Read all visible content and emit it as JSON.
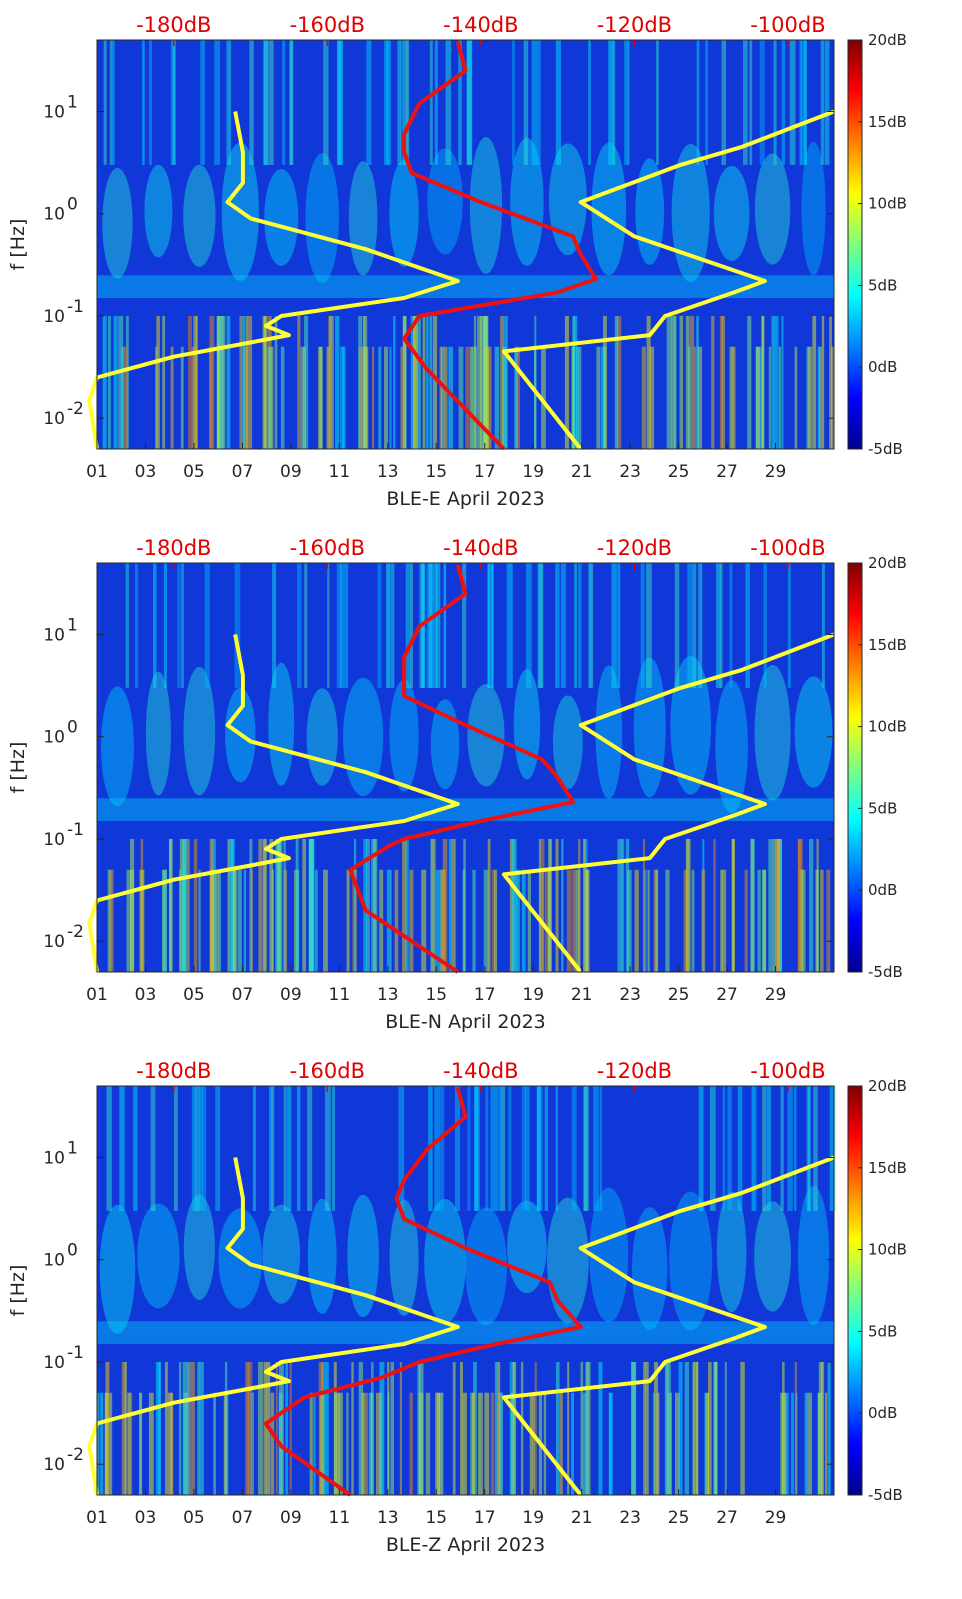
{
  "chart_data": [
    {
      "type": "heatmap",
      "station": "BLE-E",
      "xlabel": "BLE-E April 2023",
      "ylabel": "f [Hz]",
      "yscale": "log",
      "ylim": [
        0.005,
        50
      ],
      "xlim": [
        1,
        31
      ],
      "x_ticks": [
        "01",
        "03",
        "05",
        "07",
        "09",
        "11",
        "13",
        "15",
        "17",
        "19",
        "21",
        "23",
        "25",
        "27",
        "29"
      ],
      "y_ticks": [
        {
          "label": "10^-2",
          "value": 0.01
        },
        {
          "label": "10^-1",
          "value": 0.1
        },
        {
          "label": "10^0",
          "value": 1
        },
        {
          "label": "10^1",
          "value": 10
        }
      ],
      "colorbar": {
        "min": -5,
        "max": 20,
        "ticks": [
          "20dB",
          "15dB",
          "10dB",
          "5dB",
          "0dB",
          "-5dB"
        ],
        "colormap": "jet"
      },
      "top_scale": {
        "label_color": "#e00000",
        "labels": [
          "-180dB",
          "-160dB",
          "-140dB",
          "-120dB",
          "-100dB"
        ],
        "range": [
          -190,
          -94
        ]
      },
      "series": [
        {
          "color": "#ffff33",
          "points": [
            [
              -190,
              0.005
            ],
            [
              -191,
              0.015
            ],
            [
              -190,
              0.025
            ],
            [
              -180,
              0.04
            ],
            [
              -170,
              0.055
            ],
            [
              -165,
              0.065
            ],
            [
              -168,
              0.08
            ],
            [
              -166,
              0.1
            ],
            [
              -150,
              0.15
            ],
            [
              -143,
              0.22
            ],
            [
              -155,
              0.45
            ],
            [
              -170,
              0.9
            ],
            [
              -173,
              1.3
            ],
            [
              -171,
              2
            ],
            [
              -171,
              4
            ],
            [
              -172,
              10
            ]
          ]
        },
        {
          "color": "#ffff33",
          "points": [
            [
              -127,
              0.005
            ],
            [
              -137,
              0.045
            ],
            [
              -118,
              0.065
            ],
            [
              -116,
              0.1
            ],
            [
              -107,
              0.17
            ],
            [
              -103,
              0.22
            ],
            [
              -120,
              0.6
            ],
            [
              -127,
              1.3
            ],
            [
              -114,
              3
            ],
            [
              -106,
              4.5
            ],
            [
              -94,
              10
            ]
          ]
        },
        {
          "color": "#ee1111",
          "points": [
            [
              -137,
              0.005
            ],
            [
              -147,
              0.03
            ],
            [
              -150,
              0.06
            ],
            [
              -148,
              0.1
            ],
            [
              -130,
              0.17
            ],
            [
              -125,
              0.23
            ],
            [
              -127,
              0.4
            ],
            [
              -128,
              0.6
            ],
            [
              -140,
              1.3
            ],
            [
              -149,
              2.5
            ],
            [
              -150,
              4
            ],
            [
              -150,
              6
            ],
            [
              -148,
              12
            ],
            [
              -142,
              25
            ],
            [
              -143,
              48
            ]
          ]
        }
      ]
    },
    {
      "type": "heatmap",
      "station": "BLE-N",
      "xlabel": "BLE-N April 2023",
      "ylabel": "f [Hz]",
      "yscale": "log",
      "ylim": [
        0.005,
        50
      ],
      "xlim": [
        1,
        31
      ],
      "x_ticks": [
        "01",
        "03",
        "05",
        "07",
        "09",
        "11",
        "13",
        "15",
        "17",
        "19",
        "21",
        "23",
        "25",
        "27",
        "29"
      ],
      "y_ticks": [
        {
          "label": "10^-2",
          "value": 0.01
        },
        {
          "label": "10^-1",
          "value": 0.1
        },
        {
          "label": "10^0",
          "value": 1
        },
        {
          "label": "10^1",
          "value": 10
        }
      ],
      "colorbar": {
        "min": -5,
        "max": 20,
        "ticks": [
          "20dB",
          "15dB",
          "10dB",
          "5dB",
          "0dB",
          "-5dB"
        ],
        "colormap": "jet"
      },
      "top_scale": {
        "label_color": "#e00000",
        "labels": [
          "-180dB",
          "-160dB",
          "-140dB",
          "-120dB",
          "-100dB"
        ],
        "range": [
          -190,
          -94
        ]
      },
      "series": [
        {
          "color": "#ffff33",
          "points": [
            [
              -190,
              0.005
            ],
            [
              -191,
              0.015
            ],
            [
              -190,
              0.025
            ],
            [
              -180,
              0.04
            ],
            [
              -170,
              0.055
            ],
            [
              -165,
              0.065
            ],
            [
              -168,
              0.08
            ],
            [
              -166,
              0.1
            ],
            [
              -150,
              0.15
            ],
            [
              -143,
              0.22
            ],
            [
              -155,
              0.45
            ],
            [
              -170,
              0.9
            ],
            [
              -173,
              1.3
            ],
            [
              -171,
              2
            ],
            [
              -171,
              4
            ],
            [
              -172,
              10
            ]
          ]
        },
        {
          "color": "#ffff33",
          "points": [
            [
              -127,
              0.005
            ],
            [
              -137,
              0.045
            ],
            [
              -118,
              0.065
            ],
            [
              -116,
              0.1
            ],
            [
              -107,
              0.17
            ],
            [
              -103,
              0.22
            ],
            [
              -120,
              0.6
            ],
            [
              -127,
              1.3
            ],
            [
              -114,
              3
            ],
            [
              -106,
              4.5
            ],
            [
              -94,
              10
            ]
          ]
        },
        {
          "color": "#ee1111",
          "points": [
            [
              -143,
              0.005
            ],
            [
              -155,
              0.02
            ],
            [
              -157,
              0.05
            ],
            [
              -152,
              0.085
            ],
            [
              -150,
              0.1
            ],
            [
              -140,
              0.15
            ],
            [
              -128,
              0.23
            ],
            [
              -130,
              0.4
            ],
            [
              -132,
              0.6
            ],
            [
              -142,
              1.3
            ],
            [
              -150,
              2.5
            ],
            [
              -150,
              4
            ],
            [
              -150,
              6
            ],
            [
              -148,
              12
            ],
            [
              -142,
              25
            ],
            [
              -143,
              48
            ]
          ]
        }
      ]
    },
    {
      "type": "heatmap",
      "station": "BLE-Z",
      "xlabel": "BLE-Z April 2023",
      "ylabel": "f [Hz]",
      "yscale": "log",
      "ylim": [
        0.005,
        50
      ],
      "xlim": [
        1,
        31
      ],
      "x_ticks": [
        "01",
        "03",
        "05",
        "07",
        "09",
        "11",
        "13",
        "15",
        "17",
        "19",
        "21",
        "23",
        "25",
        "27",
        "29"
      ],
      "y_ticks": [
        {
          "label": "10^-2",
          "value": 0.01
        },
        {
          "label": "10^-1",
          "value": 0.1
        },
        {
          "label": "10^0",
          "value": 1
        },
        {
          "label": "10^1",
          "value": 10
        }
      ],
      "colorbar": {
        "min": -5,
        "max": 20,
        "ticks": [
          "20dB",
          "15dB",
          "10dB",
          "5dB",
          "0dB",
          "-5dB"
        ],
        "colormap": "jet"
      },
      "top_scale": {
        "label_color": "#e00000",
        "labels": [
          "-180dB",
          "-160dB",
          "-140dB",
          "-120dB",
          "-100dB"
        ],
        "range": [
          -190,
          -94
        ]
      },
      "series": [
        {
          "color": "#ffff33",
          "points": [
            [
              -190,
              0.005
            ],
            [
              -191,
              0.015
            ],
            [
              -190,
              0.025
            ],
            [
              -180,
              0.04
            ],
            [
              -170,
              0.055
            ],
            [
              -165,
              0.065
            ],
            [
              -168,
              0.08
            ],
            [
              -166,
              0.1
            ],
            [
              -150,
              0.15
            ],
            [
              -143,
              0.22
            ],
            [
              -155,
              0.45
            ],
            [
              -170,
              0.9
            ],
            [
              -173,
              1.3
            ],
            [
              -171,
              2
            ],
            [
              -171,
              4
            ],
            [
              -172,
              10
            ]
          ]
        },
        {
          "color": "#ffff33",
          "points": [
            [
              -127,
              0.005
            ],
            [
              -137,
              0.045
            ],
            [
              -118,
              0.065
            ],
            [
              -116,
              0.1
            ],
            [
              -107,
              0.17
            ],
            [
              -103,
              0.22
            ],
            [
              -120,
              0.6
            ],
            [
              -127,
              1.3
            ],
            [
              -114,
              3
            ],
            [
              -106,
              4.5
            ],
            [
              -94,
              10
            ]
          ]
        },
        {
          "color": "#ee1111",
          "points": [
            [
              -157,
              0.005
            ],
            [
              -166,
              0.015
            ],
            [
              -168,
              0.025
            ],
            [
              -163,
              0.045
            ],
            [
              -153,
              0.07
            ],
            [
              -148,
              0.1
            ],
            [
              -138,
              0.15
            ],
            [
              -127,
              0.22
            ],
            [
              -130,
              0.4
            ],
            [
              -131,
              0.6
            ],
            [
              -142,
              1.3
            ],
            [
              -150,
              2.5
            ],
            [
              -151,
              4
            ],
            [
              -150,
              6
            ],
            [
              -147,
              12
            ],
            [
              -142,
              25
            ],
            [
              -143,
              48
            ]
          ]
        }
      ]
    }
  ]
}
